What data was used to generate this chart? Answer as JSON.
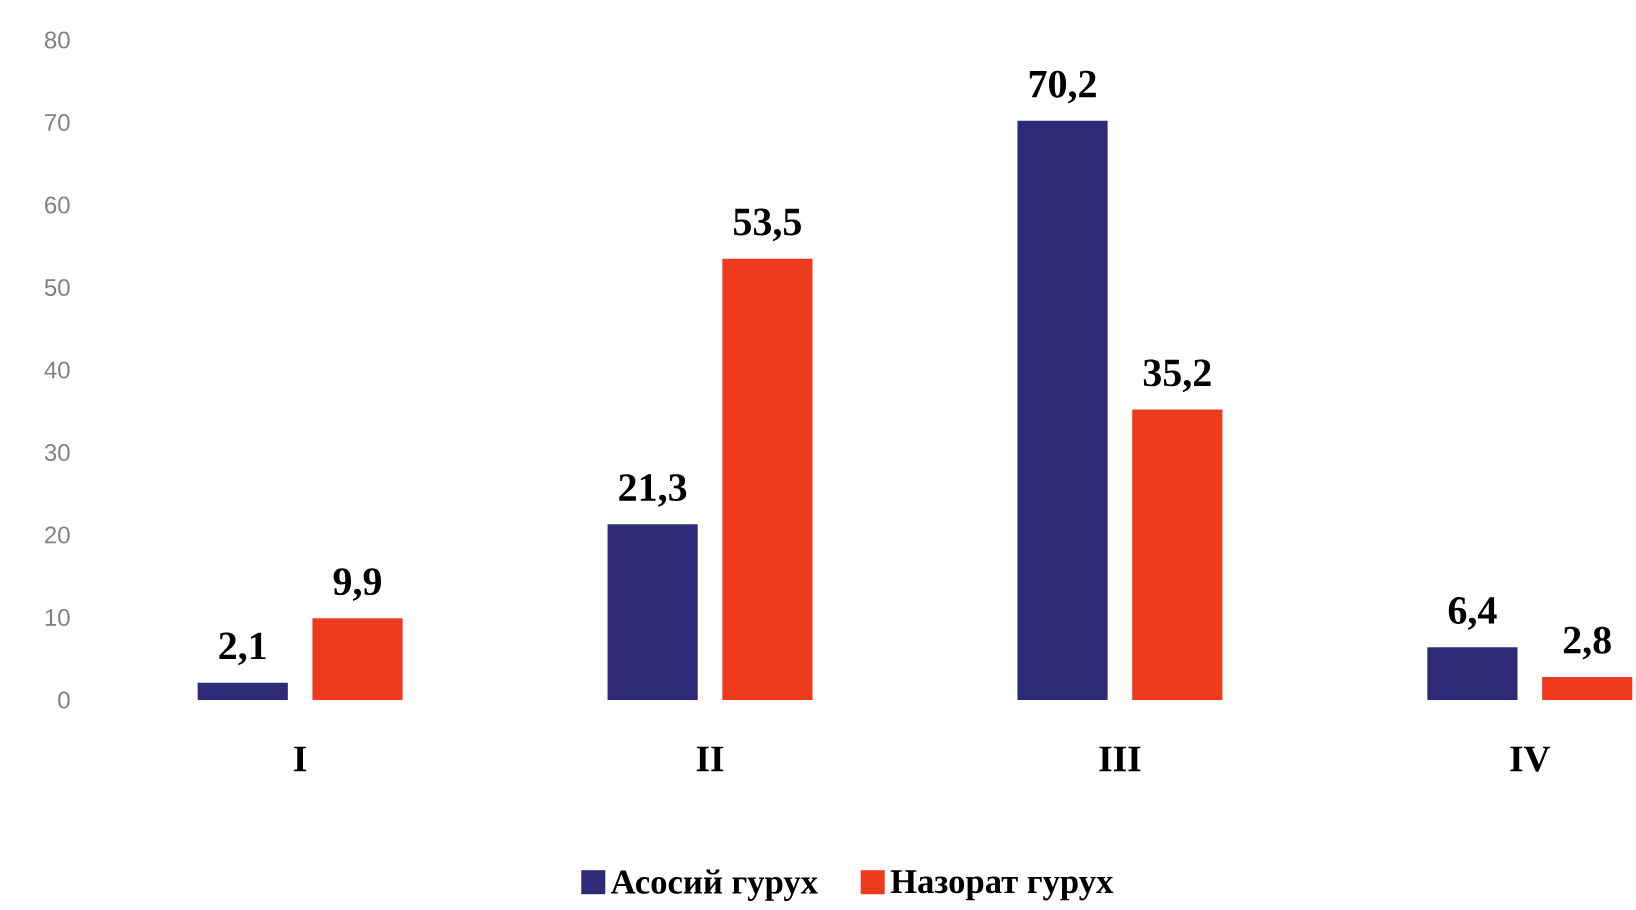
{
  "chart_data": {
    "type": "bar",
    "categories": [
      "I",
      "II",
      "III",
      "IV"
    ],
    "series": [
      {
        "name": "Асосий гурух",
        "color": "#2f2a78",
        "values": [
          2.1,
          21.3,
          70.2,
          6.4
        ],
        "value_labels": [
          "2,1",
          "21,3",
          "70,2",
          "6,4"
        ]
      },
      {
        "name": "Назорат гурух",
        "color": "#ee3b1e",
        "values": [
          9.9,
          53.5,
          35.2,
          2.8
        ],
        "value_labels": [
          "9,9",
          "53,5",
          "35,2",
          "2,8"
        ]
      }
    ],
    "ylim": [
      0,
      80
    ],
    "yticks": [
      0,
      10,
      20,
      30,
      40,
      50,
      60,
      70,
      80
    ],
    "grid": false,
    "legend": "bottom"
  }
}
